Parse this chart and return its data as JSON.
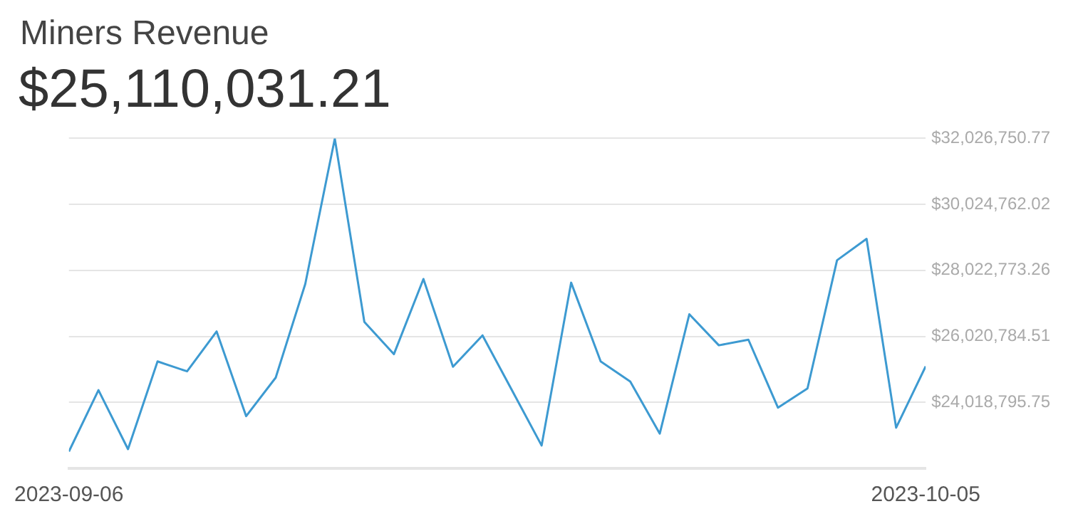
{
  "chart_data": {
    "type": "line",
    "title": "Miners Revenue",
    "subtitle": "$25,110,031.21",
    "x": [
      "2023-09-06",
      "2023-09-07",
      "2023-09-08",
      "2023-09-09",
      "2023-09-10",
      "2023-09-11",
      "2023-09-12",
      "2023-09-13",
      "2023-09-14",
      "2023-09-15",
      "2023-09-16",
      "2023-09-17",
      "2023-09-18",
      "2023-09-19",
      "2023-09-20",
      "2023-09-21",
      "2023-09-22",
      "2023-09-23",
      "2023-09-24",
      "2023-09-25",
      "2023-09-26",
      "2023-09-27",
      "2023-09-28",
      "2023-09-29",
      "2023-09-30",
      "2023-10-01",
      "2023-10-02",
      "2023-10-03",
      "2023-10-04",
      "2023-10-05"
    ],
    "series": [
      {
        "color": "#3d9ad1",
        "values": [
          22530000,
          24390000,
          22600000,
          25260000,
          24960000,
          26170000,
          23600000,
          24770000,
          27610000,
          32020000,
          26460000,
          25480000,
          27760000,
          25100000,
          26050000,
          24380000,
          22710000,
          27650000,
          25260000,
          24650000,
          23070000,
          26690000,
          25750000,
          25920000,
          23860000,
          24440000,
          28330000,
          28980000,
          23250000,
          25110000
        ]
      }
    ],
    "xlim": [
      "2023-09-06",
      "2023-10-05"
    ],
    "xticks": [
      {
        "value": "2023-09-06",
        "label": "2023-09-06"
      },
      {
        "value": "2023-10-05",
        "label": "2023-10-05"
      }
    ],
    "ylim": [
      22016807,
      32026750.77
    ],
    "yticks": [
      {
        "value": 24018795.75,
        "label": "$24,018,795.75"
      },
      {
        "value": 26020784.51,
        "label": "$26,020,784.51"
      },
      {
        "value": 28022773.26,
        "label": "$28,022,773.26"
      },
      {
        "value": 30024762.02,
        "label": "$30,024,762.02"
      },
      {
        "value": 32026750.77,
        "label": "$32,026,750.77"
      }
    ],
    "grid": "y",
    "legend": false,
    "marker": "none",
    "line_style": "solid"
  }
}
